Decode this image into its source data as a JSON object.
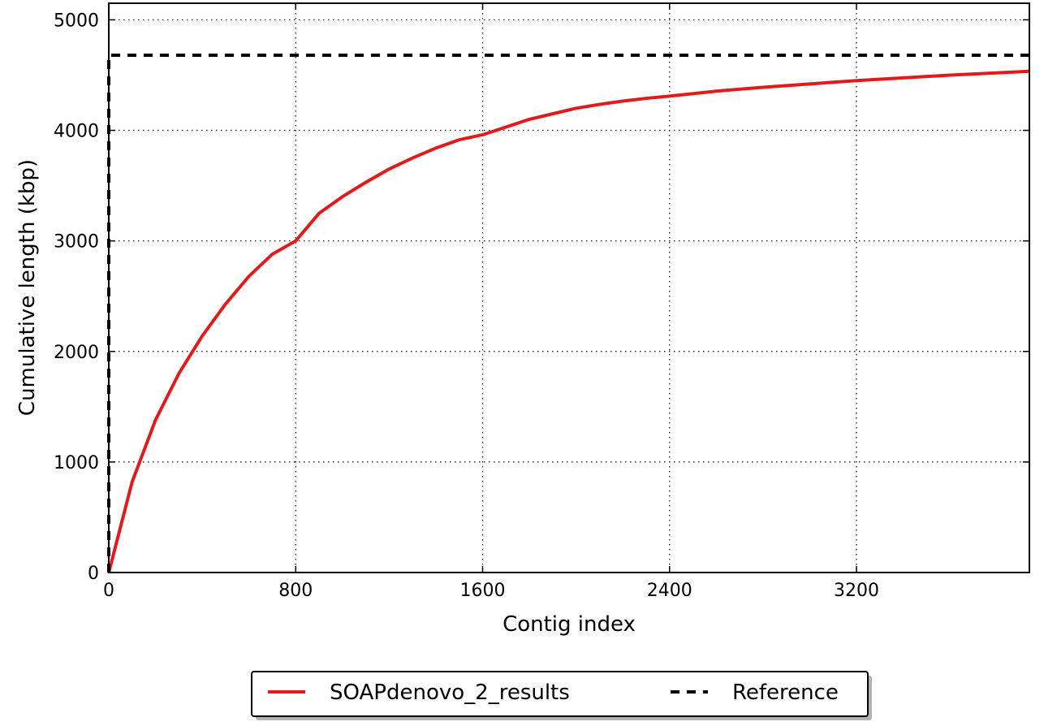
{
  "chart_data": {
    "type": "line",
    "title": "",
    "xlabel": "Contig index",
    "ylabel": "Cumulative length (kbp)",
    "xlim": [
      0,
      3940
    ],
    "ylim": [
      0,
      5150
    ],
    "x_ticks": [
      0,
      800,
      1600,
      2400,
      3200
    ],
    "y_ticks": [
      0,
      1000,
      2000,
      3000,
      4000,
      5000
    ],
    "grid": true,
    "legend_position": "bottom-center, below plot",
    "series": [
      {
        "name": "SOAPdenovo_2_results",
        "color": "#e31a1c",
        "style": "solid",
        "x": [
          0,
          100,
          200,
          300,
          400,
          500,
          600,
          700,
          800,
          900,
          1000,
          1100,
          1200,
          1300,
          1400,
          1500,
          1600,
          1700,
          1800,
          1900,
          2000,
          2100,
          2200,
          2300,
          2400,
          2600,
          2800,
          3000,
          3200,
          3400,
          3600,
          3800,
          3940
        ],
        "y": [
          0,
          820,
          1380,
          1800,
          2140,
          2430,
          2680,
          2880,
          3000,
          3250,
          3400,
          3530,
          3650,
          3750,
          3840,
          3915,
          3960,
          4030,
          4100,
          4150,
          4200,
          4235,
          4265,
          4290,
          4310,
          4355,
          4390,
          4420,
          4450,
          4475,
          4500,
          4520,
          4535
        ]
      },
      {
        "name": "Reference",
        "color": "#000000",
        "style": "dashed",
        "x": [
          0,
          0,
          3940
        ],
        "y": [
          0,
          4680,
          4680
        ]
      }
    ]
  }
}
